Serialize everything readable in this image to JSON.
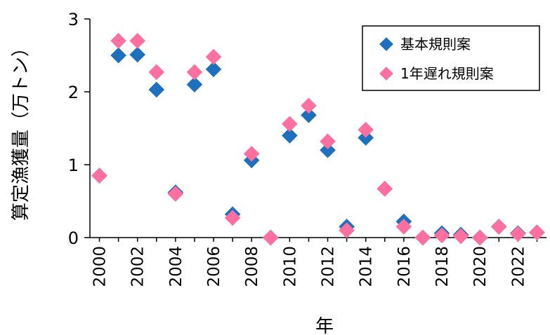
{
  "chart_data": {
    "type": "scatter",
    "title": "",
    "xlabel": "年",
    "ylabel": "算定漁獲量（万トン）",
    "xlim": [
      1999.5,
      2023.5
    ],
    "ylim": [
      0,
      3
    ],
    "yticks": [
      "0",
      "1",
      "2",
      "3"
    ],
    "xticks": [
      "2000",
      "2002",
      "2004",
      "2006",
      "2008",
      "2010",
      "2012",
      "2014",
      "2016",
      "2018",
      "2020",
      "2022"
    ],
    "grid": false,
    "legend": "top-right",
    "x": [
      2000,
      2001,
      2002,
      2003,
      2004,
      2005,
      2006,
      2007,
      2008,
      2009,
      2010,
      2011,
      2012,
      2013,
      2014,
      2015,
      2016,
      2017,
      2018,
      2019,
      2020,
      2021,
      2022,
      2023
    ],
    "series": [
      {
        "name": "基本規則案",
        "color": "#1f6fbf",
        "values": [
          0.85,
          2.5,
          2.51,
          2.03,
          0.62,
          2.1,
          2.31,
          0.32,
          1.06,
          0.0,
          1.4,
          1.68,
          1.2,
          0.15,
          1.37,
          0.67,
          0.22,
          0.0,
          0.06,
          0.04,
          0.0,
          0.15,
          0.06,
          0.07
        ]
      },
      {
        "name": "1年遅れ規則案",
        "color": "#ff6fa0",
        "values": [
          0.85,
          2.7,
          2.7,
          2.27,
          0.6,
          2.27,
          2.48,
          0.27,
          1.15,
          0.0,
          1.56,
          1.81,
          1.32,
          0.1,
          1.48,
          0.67,
          0.15,
          0.0,
          0.03,
          0.02,
          0.0,
          0.15,
          0.05,
          0.07
        ]
      }
    ]
  }
}
